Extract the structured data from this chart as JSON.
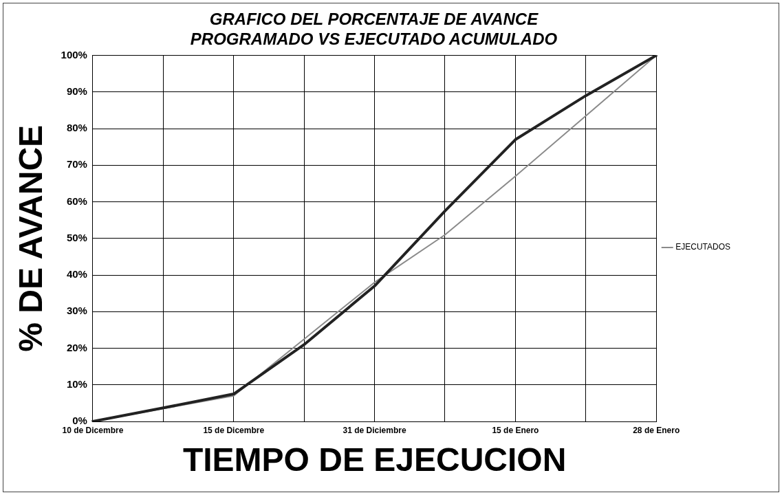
{
  "chart_data": {
    "type": "line",
    "title": "GRAFICO DEL PORCENTAJE DE AVANCE\nPROGRAMADO VS EJECUTADO ACUMULADO",
    "xlabel": "TIEMPO DE EJECUCION",
    "ylabel": "% DE AVANCE",
    "categories": [
      "10 de Dicembre",
      null,
      "15 de Dicembre",
      null,
      "31 de Diciembre",
      null,
      "15 de Enero",
      null,
      "28 de Enero"
    ],
    "series": [
      {
        "color": "#222222",
        "values": [
          0,
          3.7,
          7.5,
          21,
          37,
          57.5,
          77,
          89,
          100
        ]
      },
      {
        "name": "EJECUTADOS",
        "color": "#8a8a8a",
        "values": [
          0,
          3.5,
          7,
          22.5,
          38,
          51,
          67,
          83.5,
          100
        ]
      }
    ],
    "ylim": [
      0,
      100
    ],
    "yticks": [
      {
        "value": 0,
        "label": "0%"
      },
      {
        "value": 10,
        "label": "10%"
      },
      {
        "value": 20,
        "label": "20%"
      },
      {
        "value": 30,
        "label": "30%"
      },
      {
        "value": 40,
        "label": "40%"
      },
      {
        "value": 50,
        "label": "50%"
      },
      {
        "value": 60,
        "label": "60%"
      },
      {
        "value": 70,
        "label": "70%"
      },
      {
        "value": 80,
        "label": "80%"
      },
      {
        "value": 90,
        "label": "90%"
      },
      {
        "value": 100,
        "label": "100%"
      }
    ],
    "grid": true,
    "legend": "right",
    "marker": "none",
    "line_style": "solid"
  }
}
